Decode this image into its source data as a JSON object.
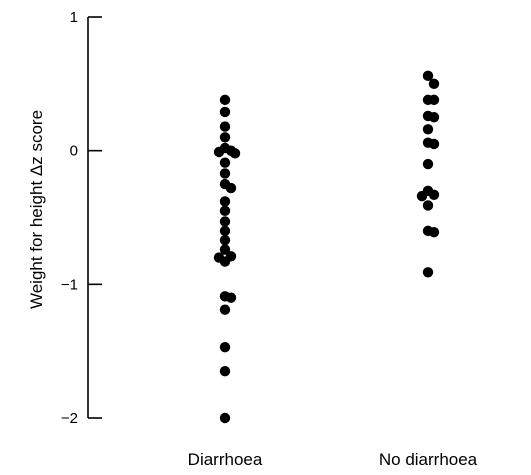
{
  "chart_data": {
    "type": "scatter",
    "title": "",
    "xlabel": "",
    "ylabel": "Weight for height Δz score",
    "ylim": [
      -2,
      1
    ],
    "yticks": [
      {
        "value": 1,
        "label": "1"
      },
      {
        "value": 0,
        "label": "0"
      },
      {
        "value": -1,
        "label": "−1"
      },
      {
        "value": -2,
        "label": "−2"
      }
    ],
    "categories": [
      "Diarrhoea",
      "No diarrhoea"
    ],
    "grid": false,
    "series": [
      {
        "category": "Diarrhoea",
        "values": [
          0.38,
          0.29,
          0.18,
          0.1,
          0.02,
          0.0,
          -0.01,
          -0.02,
          -0.09,
          -0.17,
          -0.25,
          -0.28,
          -0.38,
          -0.45,
          -0.53,
          -0.6,
          -0.67,
          -0.74,
          -0.79,
          -0.8,
          -0.83,
          -1.09,
          -1.1,
          -1.19,
          -1.47,
          -1.65,
          -2.0
        ]
      },
      {
        "category": "No diarrhoea",
        "values": [
          0.56,
          0.5,
          0.38,
          0.38,
          0.26,
          0.25,
          0.16,
          0.06,
          0.05,
          -0.1,
          -0.3,
          -0.33,
          -0.34,
          -0.41,
          -0.6,
          -0.61,
          -0.91
        ]
      }
    ]
  }
}
